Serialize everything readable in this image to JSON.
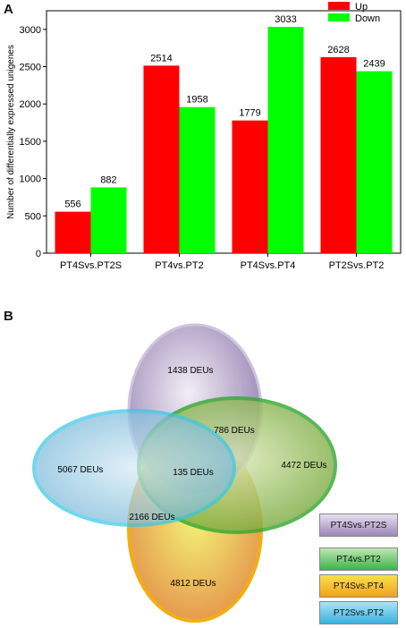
{
  "panel_a": {
    "letter": "A"
  },
  "panel_b": {
    "letter": "B"
  },
  "chart_data": {
    "type": "bar",
    "ylabel": "Number of differentially expressed unigenes",
    "xlabel": "",
    "ylim": [
      0,
      3250
    ],
    "yticks": [
      0,
      500,
      1000,
      1500,
      2000,
      2500,
      3000
    ],
    "categories": [
      "PT4Svs.PT2S",
      "PT4vs.PT2",
      "PT4Svs.PT4",
      "PT2Svs.PT2"
    ],
    "series": [
      {
        "name": "Up",
        "color": "#ff0000",
        "values": [
          556,
          2514,
          1779,
          2628
        ]
      },
      {
        "name": "Down",
        "color": "#00ff00",
        "values": [
          882,
          1958,
          3033,
          2439
        ]
      }
    ],
    "legend": "top-right",
    "grid": false
  },
  "venn": {
    "labels": {
      "purple_only": "1438 DEUs",
      "green_only": "4472 DEUs",
      "blue_only": "5067 DEUs",
      "yellow_only": "4812 DEUs",
      "purple_green": "786 DEUs",
      "center": "135 DEUs",
      "blue_yellow": "2166 DEUs"
    },
    "legend": [
      {
        "label": "PT4Svs.PT2S",
        "color": "#9b86b8"
      },
      {
        "label": "PT4vs.PT2",
        "color": "#3fb34a"
      },
      {
        "label": "PT4Svs.PT4",
        "color": "#f5a020"
      },
      {
        "label": "PT2Svs.PT2",
        "color": "#3ab0e0"
      }
    ]
  }
}
